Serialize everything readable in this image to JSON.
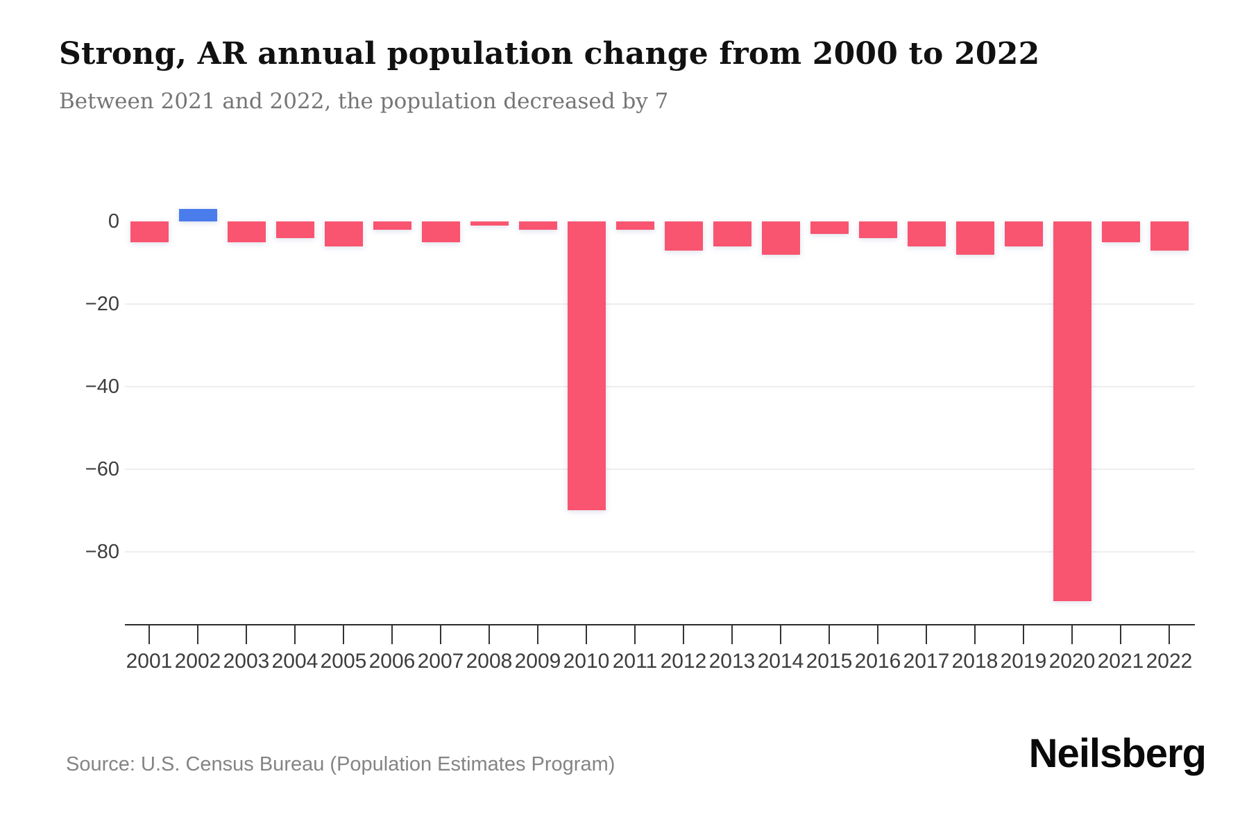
{
  "title": "Strong, AR annual population change from 2000 to 2022",
  "subtitle": "Between 2021 and 2022, the population decreased by 7",
  "source": "Source: U.S. Census Bureau (Population Estimates Program)",
  "brand": "Neilsberg",
  "chart_data": {
    "type": "bar",
    "title": "Strong, AR annual population change from 2000 to 2022",
    "subtitle": "Between 2021 and 2022, the population decreased by 7",
    "xlabel": "",
    "ylabel": "",
    "categories": [
      "2001",
      "2002",
      "2003",
      "2004",
      "2005",
      "2006",
      "2007",
      "2008",
      "2009",
      "2010",
      "2011",
      "2012",
      "2013",
      "2014",
      "2015",
      "2016",
      "2017",
      "2018",
      "2019",
      "2020",
      "2021",
      "2022"
    ],
    "values": [
      -5,
      3,
      -5,
      -4,
      -6,
      -2,
      -5,
      -1,
      -2,
      -70,
      -2,
      -7,
      -6,
      -8,
      -3,
      -4,
      -6,
      -8,
      -6,
      -92,
      -5,
      -7
    ],
    "y_ticks": {
      "labels": [
        "0",
        "−20",
        "−40",
        "−60",
        "−80"
      ],
      "values": [
        0,
        -20,
        -40,
        -60,
        -80
      ]
    },
    "ylim": [
      -97,
      11
    ],
    "grid": true,
    "legend": false,
    "colors": {
      "positive": "#4A7DEB",
      "negative": "#F95470"
    }
  }
}
